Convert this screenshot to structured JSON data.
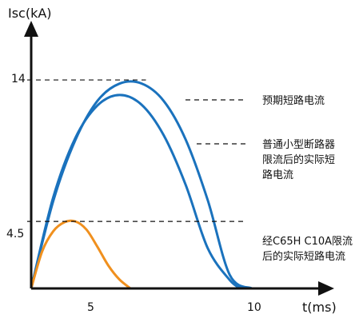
{
  "chart_data": {
    "type": "line",
    "xlabel": "t(ms)",
    "ylabel": "Isc(kA)",
    "xlim": [
      0,
      12
    ],
    "ylim": [
      0,
      16.5
    ],
    "x_ticks": [
      "5",
      "10"
    ],
    "y_ticks": [
      "14",
      "4.5"
    ],
    "grid": false,
    "colors": {
      "blue": "#1a72bd",
      "orange": "#f0901e",
      "axis": "#111111"
    },
    "series": [
      {
        "color": "#1a72bd",
        "label": "预期短路电流",
        "x": [
          0,
          1,
          2,
          3,
          4,
          5,
          6,
          7,
          8,
          9,
          10
        ],
        "y": [
          0,
          5.87,
          9.96,
          12.59,
          13.75,
          13.76,
          12.6,
          10.0,
          5.93,
          0.9,
          0
        ]
      },
      {
        "color": "#1a72bd",
        "label": "普通小型断路器限流后的实际短路电流",
        "x": [
          0,
          1,
          2,
          3,
          4,
          5,
          6,
          7,
          8,
          9,
          9.5
        ],
        "y": [
          0,
          6.12,
          10.1,
          12.28,
          12.99,
          12.34,
          10.3,
          6.96,
          2.7,
          0.56,
          0
        ]
      },
      {
        "color": "#f0901e",
        "label": "经C65H C10A限流后的实际短路电流",
        "x": [
          0,
          0.5,
          1.0,
          1.5,
          2.0,
          2.5,
          3.0,
          3.5,
          4.0,
          4.5
        ],
        "y": [
          0,
          2.5,
          3.84,
          4.44,
          4.5,
          3.96,
          2.8,
          1.53,
          0.6,
          0
        ]
      }
    ],
    "reference_lines": [
      {
        "y": 14,
        "label": "14"
      },
      {
        "y": 4.5,
        "label": "4.5"
      }
    ],
    "annotations": [
      {
        "lines": [
          "预期短路电流"
        ]
      },
      {
        "lines": [
          "普通小型断路器",
          "限流后的实际短",
          "路电流"
        ]
      },
      {
        "lines": [
          "经C65H C10A限流",
          "后的实际短路电流"
        ]
      }
    ]
  }
}
